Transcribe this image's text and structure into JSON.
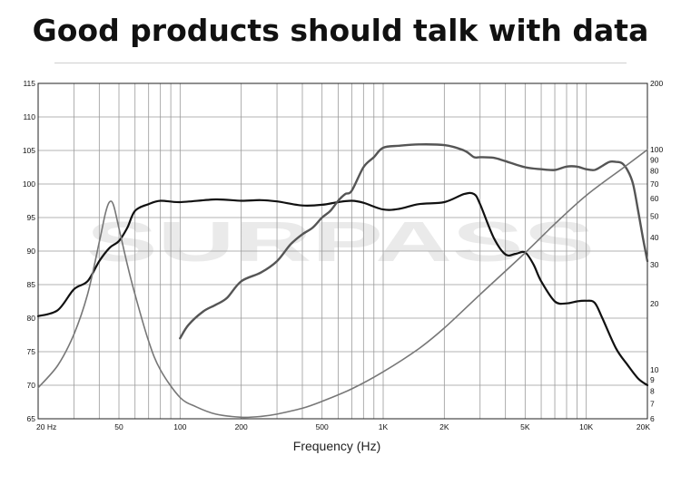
{
  "title": "Good products should talk with data",
  "watermark": "SURPASS",
  "chart_data": {
    "type": "line",
    "title": "Good products should talk with data",
    "xlabel": "Frequency (Hz)",
    "ylabel": "",
    "x_scale": "log",
    "xlim": [
      20,
      20000
    ],
    "ylim": [
      65,
      115
    ],
    "y2_scale": "log",
    "y2lim": [
      6,
      200
    ],
    "grid": true,
    "x_tick_labels": [
      {
        "value": 20,
        "label": "20 Hz"
      },
      {
        "value": 50,
        "label": "50"
      },
      {
        "value": 100,
        "label": "100"
      },
      {
        "value": 200,
        "label": "200"
      },
      {
        "value": 500,
        "label": "500"
      },
      {
        "value": 1000,
        "label": "1K"
      },
      {
        "value": 2000,
        "label": "2K"
      },
      {
        "value": 5000,
        "label": "5K"
      },
      {
        "value": 10000,
        "label": "10K"
      },
      {
        "value": 20000,
        "label": "20K"
      }
    ],
    "y_ticks": [
      65,
      70,
      75,
      80,
      85,
      90,
      95,
      100,
      105,
      110,
      115
    ],
    "y2_ticks": [
      6,
      7,
      8,
      9,
      10,
      20,
      30,
      40,
      50,
      60,
      70,
      80,
      90,
      100,
      200
    ],
    "series": [
      {
        "name": "",
        "axis": "left",
        "color": "#111111",
        "x": [
          20,
          25,
          30,
          35,
          40,
          45,
          50,
          55,
          60,
          70,
          80,
          100,
          150,
          200,
          250,
          300,
          400,
          500,
          600,
          700,
          800,
          1000,
          1200,
          1500,
          2000,
          2500,
          2800,
          3000,
          3500,
          4000,
          4500,
          5000,
          5500,
          6000,
          7000,
          8000,
          9000,
          10000,
          11000,
          12000,
          14000,
          16000,
          18000,
          20000
        ],
        "y": [
          80.3,
          81.2,
          84.3,
          85.5,
          88.5,
          90.5,
          91.5,
          93.5,
          96,
          97,
          97.5,
          97.3,
          97.7,
          97.5,
          97.6,
          97.4,
          96.8,
          96.9,
          97.3,
          97.5,
          97.2,
          96.2,
          96.3,
          97,
          97.3,
          98.5,
          98.5,
          97,
          92,
          89.5,
          89.6,
          89.8,
          88,
          85.5,
          82.5,
          82.2,
          82.5,
          82.6,
          82.3,
          80,
          75.5,
          73,
          71,
          70
        ]
      },
      {
        "name": "",
        "axis": "left",
        "color": "#555555",
        "x": [
          100,
          110,
          130,
          150,
          170,
          200,
          250,
          300,
          350,
          400,
          450,
          500,
          550,
          600,
          650,
          700,
          800,
          900,
          1000,
          1200,
          1500,
          2000,
          2500,
          2800,
          3000,
          3500,
          4000,
          5000,
          6000,
          7000,
          8000,
          9000,
          10000,
          11000,
          12000,
          13000,
          14000,
          15000,
          16000,
          17000,
          18000,
          19000,
          20000
        ],
        "y": [
          77,
          79,
          81,
          82,
          83,
          85.5,
          86.8,
          88.5,
          91,
          92.5,
          93.5,
          95,
          96,
          97.5,
          98.5,
          99,
          102.5,
          104,
          105.4,
          105.7,
          105.9,
          105.8,
          105,
          104,
          104,
          103.9,
          103.4,
          102.5,
          102.2,
          102.1,
          102.6,
          102.6,
          102.2,
          102.1,
          102.7,
          103.3,
          103.3,
          103.1,
          102,
          100,
          96,
          92,
          88.5
        ]
      },
      {
        "name": "",
        "axis": "right",
        "color": "#777777",
        "x": [
          20,
          25,
          30,
          35,
          40,
          43,
          45,
          47,
          50,
          55,
          60,
          70,
          80,
          100,
          120,
          150,
          200,
          250,
          300,
          400,
          500,
          700,
          1000,
          1500,
          2000,
          3000,
          5000,
          7000,
          10000,
          15000,
          20000
        ],
        "y": [
          8.3,
          10.5,
          14.5,
          22,
          38,
          52,
          58,
          56,
          44,
          30,
          22,
          13.5,
          10,
          7.5,
          6.8,
          6.3,
          6.1,
          6.15,
          6.3,
          6.7,
          7.2,
          8.2,
          9.8,
          12.5,
          15.5,
          22,
          34,
          46,
          62,
          82,
          100
        ]
      }
    ]
  }
}
